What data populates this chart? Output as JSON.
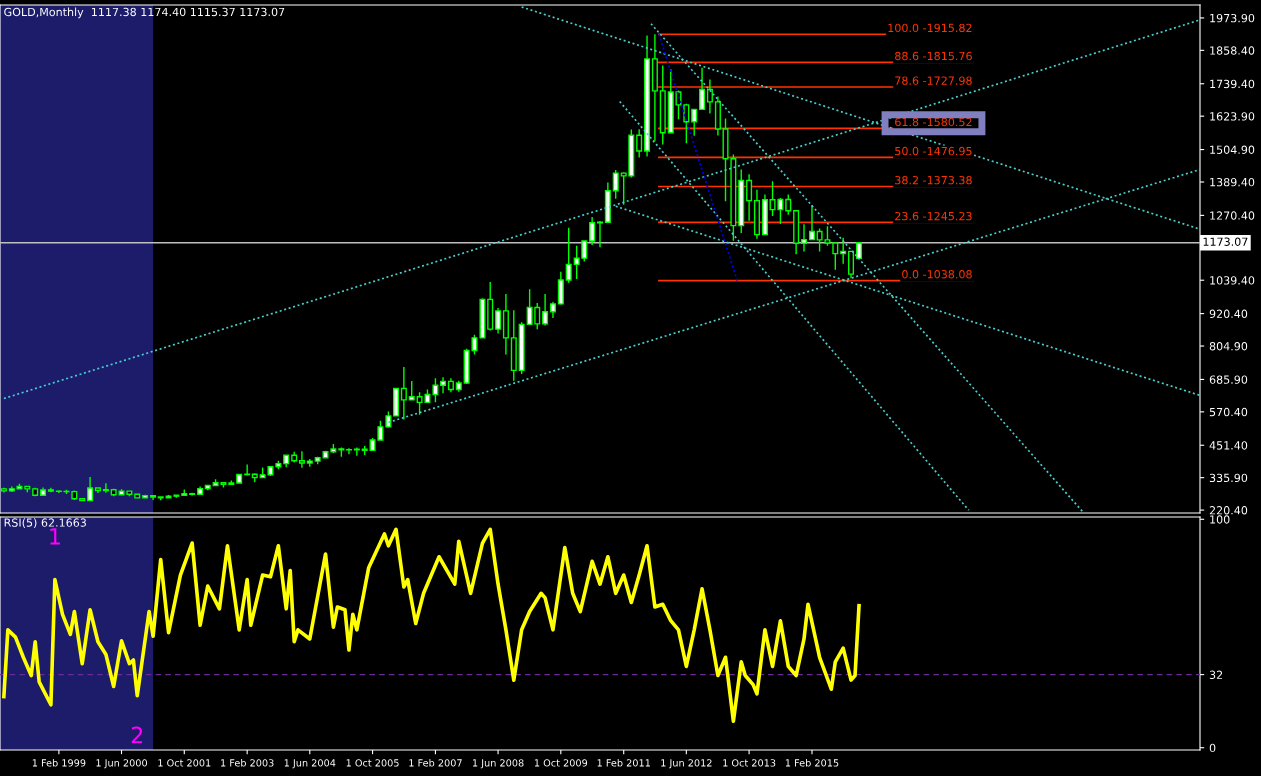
{
  "chart_data": [
    {
      "type": "candlestick",
      "title": "GOLD,Monthly  1117.38 1174.40 1115.37 1173.07",
      "color": "#00ff00",
      "x": [
        "1997-12",
        "1998-02",
        "1998-04",
        "1998-06",
        "1998-08",
        "1998-10",
        "1998-12",
        "1999-02",
        "1999-04",
        "1999-06",
        "1999-08",
        "1999-10",
        "1999-12",
        "2000-02",
        "2000-04",
        "2000-06",
        "2000-08",
        "2000-10",
        "2000-12",
        "2001-02",
        "2001-04",
        "2001-06",
        "2001-08",
        "2001-10",
        "2001-12",
        "2002-02",
        "2002-04",
        "2002-06",
        "2002-08",
        "2002-10",
        "2002-12",
        "2003-02",
        "2003-04",
        "2003-06",
        "2003-08",
        "2003-10",
        "2003-12",
        "2004-02",
        "2004-04",
        "2004-06",
        "2004-08",
        "2004-10",
        "2004-12",
        "2005-02",
        "2005-04",
        "2005-06",
        "2005-08",
        "2005-10",
        "2005-12",
        "2006-02",
        "2006-04",
        "2006-06",
        "2006-08",
        "2006-10",
        "2006-12",
        "2007-02",
        "2007-04",
        "2007-06",
        "2007-08",
        "2007-10",
        "2007-12",
        "2008-02",
        "2008-04",
        "2008-06",
        "2008-08",
        "2008-10",
        "2008-12",
        "2009-02",
        "2009-04",
        "2009-06",
        "2009-08",
        "2009-10",
        "2009-12",
        "2010-02",
        "2010-04",
        "2010-06",
        "2010-08",
        "2010-10",
        "2010-12",
        "2011-02",
        "2011-04",
        "2011-06",
        "2011-08",
        "2011-10",
        "2011-12",
        "2012-02",
        "2012-04",
        "2012-06",
        "2012-08",
        "2012-10",
        "2012-12",
        "2013-02",
        "2013-04",
        "2013-06",
        "2013-08",
        "2013-10",
        "2013-12",
        "2014-02",
        "2014-04",
        "2014-06",
        "2014-08",
        "2014-10",
        "2014-12",
        "2015-02",
        "2015-04",
        "2015-06",
        "2015-08",
        "2015-10",
        "2015-12",
        "2016-02"
      ],
      "ohlc": [
        [
          296,
          300,
          283,
          289
        ],
        [
          289,
          304,
          285,
          296
        ],
        [
          296,
          314,
          295,
          305
        ],
        [
          305,
          306,
          284,
          296
        ],
        [
          296,
          300,
          270,
          273
        ],
        [
          273,
          301,
          272,
          292
        ],
        [
          292,
          300,
          284,
          288
        ],
        [
          288,
          291,
          281,
          287
        ],
        [
          287,
          293,
          278,
          286
        ],
        [
          286,
          290,
          256,
          261
        ],
        [
          261,
          263,
          252,
          254
        ],
        [
          254,
          338,
          253,
          299
        ],
        [
          299,
          300,
          281,
          290
        ],
        [
          290,
          316,
          282,
          293
        ],
        [
          293,
          296,
          270,
          275
        ],
        [
          275,
          295,
          273,
          288
        ],
        [
          288,
          290,
          270,
          277
        ],
        [
          277,
          278,
          263,
          264
        ],
        [
          264,
          275,
          262,
          272
        ],
        [
          272,
          274,
          256,
          267
        ],
        [
          267,
          270,
          255,
          264
        ],
        [
          264,
          274,
          263,
          270
        ],
        [
          270,
          276,
          264,
          273
        ],
        [
          273,
          294,
          271,
          279
        ],
        [
          279,
          282,
          272,
          277
        ],
        [
          277,
          304,
          276,
          297
        ],
        [
          297,
          311,
          291,
          308
        ],
        [
          308,
          330,
          307,
          318
        ],
        [
          318,
          320,
          301,
          312
        ],
        [
          312,
          326,
          310,
          317
        ],
        [
          317,
          350,
          315,
          347
        ],
        [
          347,
          383,
          344,
          348
        ],
        [
          348,
          352,
          320,
          336
        ],
        [
          336,
          372,
          335,
          346
        ],
        [
          346,
          377,
          342,
          375
        ],
        [
          375,
          396,
          366,
          386
        ],
        [
          386,
          418,
          373,
          416
        ],
        [
          416,
          428,
          390,
          396
        ],
        [
          396,
          430,
          371,
          388
        ],
        [
          388,
          402,
          375,
          395
        ],
        [
          395,
          410,
          384,
          407
        ],
        [
          407,
          432,
          406,
          428
        ],
        [
          428,
          456,
          424,
          438
        ],
        [
          438,
          443,
          410,
          435
        ],
        [
          435,
          441,
          419,
          435
        ],
        [
          435,
          443,
          414,
          437
        ],
        [
          437,
          449,
          417,
          433
        ],
        [
          433,
          477,
          431,
          470
        ],
        [
          470,
          539,
          469,
          517
        ],
        [
          517,
          572,
          514,
          556
        ],
        [
          556,
          654,
          555,
          654
        ],
        [
          654,
          730,
          543,
          613
        ],
        [
          613,
          680,
          612,
          624
        ],
        [
          624,
          640,
          560,
          604
        ],
        [
          604,
          650,
          603,
          632
        ],
        [
          632,
          690,
          605,
          665
        ],
        [
          665,
          694,
          637,
          679
        ],
        [
          679,
          690,
          640,
          650
        ],
        [
          650,
          681,
          642,
          673
        ],
        [
          673,
          795,
          670,
          789
        ],
        [
          789,
          845,
          775,
          834
        ],
        [
          834,
          975,
          834,
          971
        ],
        [
          971,
          1033,
          860,
          865
        ],
        [
          865,
          940,
          850,
          930
        ],
        [
          930,
          990,
          775,
          834
        ],
        [
          834,
          932,
          681,
          718
        ],
        [
          718,
          890,
          705,
          882
        ],
        [
          882,
          1007,
          880,
          942
        ],
        [
          942,
          958,
          865,
          884
        ],
        [
          884,
          990,
          878,
          927
        ],
        [
          927,
          962,
          905,
          955
        ],
        [
          955,
          1070,
          952,
          1040
        ],
        [
          1040,
          1226,
          1030,
          1096
        ],
        [
          1096,
          1162,
          1044,
          1118
        ],
        [
          1118,
          1182,
          1106,
          1179
        ],
        [
          1179,
          1265,
          1165,
          1244
        ],
        [
          1244,
          1250,
          1157,
          1246
        ],
        [
          1246,
          1388,
          1243,
          1358
        ],
        [
          1358,
          1432,
          1330,
          1421
        ],
        [
          1421,
          1424,
          1308,
          1411
        ],
        [
          1411,
          1576,
          1405,
          1556
        ],
        [
          1556,
          1577,
          1477,
          1500
        ],
        [
          1500,
          1911,
          1480,
          1828
        ],
        [
          1828,
          1916,
          1535,
          1714
        ],
        [
          1714,
          1804,
          1523,
          1565
        ],
        [
          1565,
          1791,
          1563,
          1710
        ],
        [
          1710,
          1715,
          1613,
          1664
        ],
        [
          1664,
          1668,
          1527,
          1604
        ],
        [
          1604,
          1649,
          1554,
          1648
        ],
        [
          1648,
          1796,
          1646,
          1719
        ],
        [
          1719,
          1755,
          1633,
          1675
        ],
        [
          1675,
          1694,
          1555,
          1578
        ],
        [
          1578,
          1616,
          1321,
          1472
        ],
        [
          1472,
          1487,
          1180,
          1234
        ],
        [
          1234,
          1434,
          1208,
          1395
        ],
        [
          1395,
          1417,
          1251,
          1323
        ],
        [
          1323,
          1362,
          1187,
          1202
        ],
        [
          1202,
          1345,
          1202,
          1326
        ],
        [
          1326,
          1392,
          1268,
          1291
        ],
        [
          1291,
          1332,
          1240,
          1327
        ],
        [
          1327,
          1345,
          1273,
          1287
        ],
        [
          1287,
          1290,
          1132,
          1171
        ],
        [
          1171,
          1239,
          1142,
          1184
        ],
        [
          1184,
          1307,
          1184,
          1213
        ],
        [
          1213,
          1224,
          1142,
          1183
        ],
        [
          1183,
          1232,
          1162,
          1172
        ],
        [
          1172,
          1173,
          1077,
          1134
        ],
        [
          1134,
          1191,
          1098,
          1142
        ],
        [
          1142,
          1142,
          1046,
          1061
        ],
        [
          1117.38,
          1174.4,
          1115.37,
          1173.07
        ]
      ],
      "series": [
        {
          "type": "line",
          "color": "#48d1cc",
          "line_style": "dotted",
          "x": [
            "1997-12",
            "2023-05"
          ],
          "values": [
            618,
            1967
          ]
        },
        {
          "type": "line",
          "color": "#48d1cc",
          "line_style": "dotted",
          "x": [
            "2006-02",
            "2023-05"
          ],
          "values": [
            533,
            1434
          ]
        },
        {
          "type": "line",
          "color": "#48d1cc",
          "line_style": "dotted",
          "x": [
            "2008-12",
            "2023-05"
          ],
          "values": [
            2013,
            1221
          ]
        },
        {
          "type": "line",
          "color": "#48d1cc",
          "line_style": "dotted",
          "x": [
            "2010-12",
            "2023-05"
          ],
          "values": [
            1303,
            629
          ]
        },
        {
          "type": "line",
          "color": "#48d1cc",
          "line_style": "dotted",
          "x": [
            "2011-01",
            "2018-06"
          ],
          "values": [
            1676,
            220
          ]
        },
        {
          "type": "line",
          "color": "#48d1cc",
          "line_style": "dotted",
          "x": [
            "2011-09",
            "2020-11"
          ],
          "values": [
            1953,
            215
          ]
        },
        {
          "type": "line",
          "color": "#0000ff",
          "line_style": "dotted",
          "x": [
            "2011-11",
            "2013-07"
          ],
          "values": [
            1915.82,
            1038.08
          ]
        },
        {
          "type": "line",
          "name": "100.0 -1915.82",
          "color": "#ff3300",
          "line_style": "solid",
          "x": [
            "2011-11",
            "2018-07"
          ],
          "values": [
            1915.82,
            1915.82
          ]
        },
        {
          "type": "line",
          "name": "88.6 -1815.76",
          "color": "#ff3300",
          "line_style": "solid",
          "x": [
            "2011-11",
            "2018-07"
          ],
          "values": [
            1815.76,
            1815.76
          ]
        },
        {
          "type": "line",
          "name": "78.6 -1727.98",
          "color": "#ff3300",
          "line_style": "solid",
          "x": [
            "2011-11",
            "2018-07"
          ],
          "values": [
            1727.98,
            1727.98
          ]
        },
        {
          "type": "line",
          "name": "61.8 -1580.52",
          "color": "#ff3300",
          "line_style": "solid",
          "x": [
            "2011-11",
            "2018-07"
          ],
          "values": [
            1580.52,
            1580.52
          ]
        },
        {
          "type": "line",
          "name": "50.0 -1476.95",
          "color": "#ff3300",
          "line_style": "solid",
          "x": [
            "2011-11",
            "2018-07"
          ],
          "values": [
            1476.95,
            1476.95
          ]
        },
        {
          "type": "line",
          "name": "38.2 -1373.38",
          "color": "#ff3300",
          "line_style": "solid",
          "x": [
            "2011-11",
            "2018-07"
          ],
          "values": [
            1373.38,
            1373.38
          ]
        },
        {
          "type": "line",
          "name": "23.6 -1245.23",
          "color": "#ff3300",
          "line_style": "solid",
          "x": [
            "2011-11",
            "2018-07"
          ],
          "values": [
            1245.23,
            1245.23
          ]
        },
        {
          "type": "line",
          "name": "0.0 -1038.08",
          "color": "#ff3300",
          "line_style": "solid",
          "x": [
            "2011-11",
            "2018-07"
          ],
          "values": [
            1038.08,
            1038.08
          ]
        }
      ],
      "xlim": [
        "1997-11",
        "2023-05"
      ],
      "ylim": [
        210,
        2020
      ],
      "yticks": [
        {
          "value": 1973.9,
          "label": "1973.90"
        },
        {
          "value": 1858.4,
          "label": "1858.40"
        },
        {
          "value": 1739.4,
          "label": "1739.40"
        },
        {
          "value": 1623.9,
          "label": "1623.90"
        },
        {
          "value": 1504.9,
          "label": "1504.90"
        },
        {
          "value": 1389.4,
          "label": "1389.40"
        },
        {
          "value": 1270.4,
          "label": "1270.40"
        },
        {
          "value": 1039.4,
          "label": "1039.40"
        },
        {
          "value": 920.4,
          "label": "920.40"
        },
        {
          "value": 804.9,
          "label": "804.90"
        },
        {
          "value": 685.9,
          "label": "685.90"
        },
        {
          "value": 570.4,
          "label": "570.40"
        },
        {
          "value": 451.4,
          "label": "451.40"
        },
        {
          "value": 335.9,
          "label": "335.90"
        },
        {
          "value": 220.4,
          "label": "220.40"
        }
      ],
      "ref_lines": [
        {
          "axis": "y",
          "value": 1173.07,
          "label": "1173.07",
          "color": "#c0c0c0",
          "line_style": "solid"
        }
      ],
      "bands": [
        {
          "axis": "x",
          "from": "1997-11",
          "to": "2001-02",
          "color": "#1c1c6b"
        }
      ],
      "tick_labels": "y",
      "grid": false
    },
    {
      "type": "line",
      "title": "RSI(5) 62.1663",
      "series": [
        {
          "color": "#ffff00",
          "line_style": "solid",
          "x": [
            "1997-12",
            "1998-01",
            "1998-03",
            "1998-05",
            "1998-07",
            "1998-08",
            "1998-09",
            "1998-12",
            "1999-01",
            "1999-03",
            "1999-05",
            "1999-06",
            "1999-08",
            "1999-10",
            "1999-12",
            "2000-02",
            "2000-04",
            "2000-06",
            "2000-08",
            "2000-09",
            "2000-10",
            "2001-01",
            "2001-02",
            "2001-04",
            "2001-06",
            "2001-09",
            "2001-12",
            "2002-02",
            "2002-04",
            "2002-07",
            "2002-09",
            "2002-12",
            "2003-02",
            "2003-03",
            "2003-06",
            "2003-08",
            "2003-10",
            "2003-12",
            "2004-01",
            "2004-02",
            "2004-03",
            "2004-06",
            "2004-10",
            "2004-12",
            "2005-01",
            "2005-03",
            "2005-04",
            "2005-05",
            "2005-06",
            "2005-09",
            "2006-01",
            "2006-02",
            "2006-04",
            "2006-06",
            "2006-07",
            "2006-09",
            "2006-11",
            "2007-03",
            "2007-07",
            "2007-08",
            "2007-11",
            "2008-02",
            "2008-04",
            "2008-06",
            "2008-08",
            "2008-10",
            "2008-12",
            "2009-02",
            "2009-05",
            "2009-06",
            "2009-08",
            "2009-11",
            "2010-01",
            "2010-03",
            "2010-06",
            "2010-08",
            "2010-10",
            "2010-12",
            "2011-02",
            "2011-04",
            "2011-06",
            "2011-08",
            "2011-10",
            "2011-12",
            "2012-02",
            "2012-04",
            "2012-06",
            "2012-08",
            "2012-10",
            "2012-12",
            "2013-02",
            "2013-04",
            "2013-06",
            "2013-08",
            "2013-09",
            "2013-11",
            "2013-12",
            "2014-02",
            "2014-04",
            "2014-06",
            "2014-08",
            "2014-10",
            "2014-12",
            "2015-01",
            "2015-03",
            "2015-04",
            "2015-07",
            "2015-08",
            "2015-10",
            "2015-12",
            "2016-01",
            "2016-02"
          ],
          "values": [
            22.4,
            51.6,
            48.4,
            39.6,
            31.6,
            46.4,
            28.8,
            18.8,
            73.6,
            58.4,
            49.6,
            59.6,
            36.8,
            60.4,
            46.4,
            40.8,
            26.8,
            46.8,
            36.8,
            38.4,
            22.8,
            59.6,
            48.8,
            82.4,
            50.4,
            75.6,
            89.6,
            53.6,
            70.8,
            60.8,
            88.4,
            51.6,
            73.6,
            53.6,
            75.6,
            74.8,
            88.4,
            60.8,
            77.6,
            46.4,
            51.6,
            47.6,
            84.8,
            52.8,
            61.6,
            60.4,
            42.8,
            58.4,
            51.6,
            78.8,
            93.6,
            88.4,
            95.6,
            70.4,
            73.6,
            54.4,
            67.6,
            83.6,
            71.6,
            90.4,
            67.6,
            89.6,
            95.6,
            71.6,
            51.6,
            29.6,
            51.6,
            59.6,
            67.6,
            65.6,
            51.6,
            87.6,
            67.6,
            59.6,
            81.6,
            71.6,
            83.6,
            67.6,
            75.6,
            63.6,
            75.6,
            88.4,
            61.6,
            62.8,
            55.6,
            51.6,
            35.6,
            51.6,
            69.6,
            51.6,
            31.6,
            39.6,
            11.6,
            37.6,
            31.6,
            27.6,
            23.6,
            51.6,
            35.6,
            55.6,
            35.6,
            31.6,
            47.6,
            62.8,
            47.6,
            39.6,
            25.6,
            37.6,
            43.6,
            29.6,
            31.6,
            62.1663
          ]
        }
      ],
      "xlim": [
        "1997-11",
        "2023-05"
      ],
      "ylim": [
        -1,
        101
      ],
      "xticks": [
        {
          "value": "1999-02",
          "label": "1 Feb 1999"
        },
        {
          "value": "2000-06",
          "label": "1 Jun 2000"
        },
        {
          "value": "2001-10",
          "label": "1 Oct 2001"
        },
        {
          "value": "2003-02",
          "label": "1 Feb 2003"
        },
        {
          "value": "2004-06",
          "label": "1 Jun 2004"
        },
        {
          "value": "2005-10",
          "label": "1 Oct 2005"
        },
        {
          "value": "2007-02",
          "label": "1 Feb 2007"
        },
        {
          "value": "2008-06",
          "label": "1 Jun 2008"
        },
        {
          "value": "2009-10",
          "label": "1 Oct 2009"
        },
        {
          "value": "2011-02",
          "label": "1 Feb 2011"
        },
        {
          "value": "2012-06",
          "label": "1 Jun 2012"
        },
        {
          "value": "2013-10",
          "label": "1 Oct 2013"
        },
        {
          "value": "2015-02",
          "label": "1 Feb 2015"
        }
      ],
      "yticks": [
        100,
        32,
        0
      ],
      "ref_lines": [
        {
          "axis": "y",
          "value": 32,
          "color": "#6a2a9a",
          "line_style": "dashed"
        }
      ],
      "bands": [
        {
          "axis": "x",
          "from": "1997-11",
          "to": "2001-02",
          "color": "#1c1c6b"
        }
      ],
      "annotations": [
        {
          "text": "1",
          "x": "1999-01",
          "y": 73.6
        },
        {
          "text": "2",
          "x": "2000-10",
          "y": 22.8
        }
      ],
      "grid": false
    }
  ]
}
